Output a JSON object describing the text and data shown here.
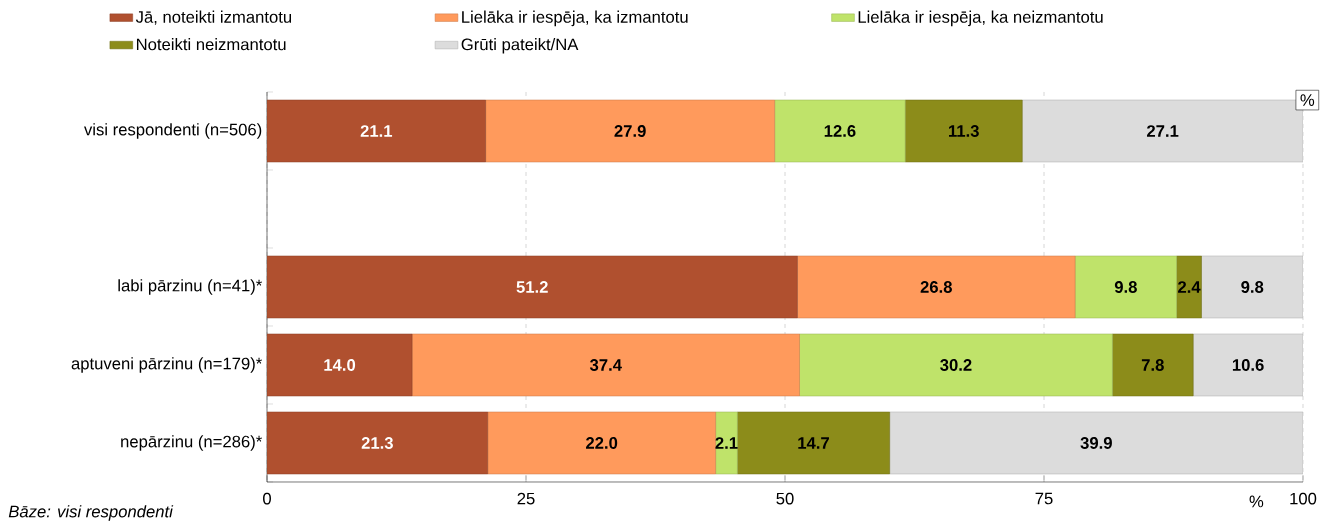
{
  "chart_data": {
    "type": "bar",
    "orientation": "horizontal",
    "stacked": true,
    "grid": "x",
    "legend": "top",
    "xlabel": "%",
    "categories": [
      "visi respondenti (n=506)",
      null,
      "labi pārzinu (n=41)*",
      "aptuveni pārzinu (n=179)*",
      "nepārzinu (n=286)*"
    ],
    "xlim": [
      0,
      100
    ],
    "xticks": [
      0,
      25,
      50,
      75,
      100
    ],
    "series": [
      {
        "name": "Jā, noteikti izmantotu",
        "color": "#b0502f",
        "values": [
          21.1,
          null,
          51.2,
          14.0,
          21.3
        ],
        "value_labels": [
          "21.1",
          null,
          "51.2",
          "14.0",
          "21.3"
        ]
      },
      {
        "name": "Lielāka ir iespēja, ka izmantotu",
        "color": "#ff9a5c",
        "values": [
          27.9,
          null,
          26.8,
          37.4,
          22.0
        ],
        "value_labels": [
          "27.9",
          null,
          "26.8",
          "37.4",
          "22.0"
        ]
      },
      {
        "name": "Lielāka ir iespēja, ka neizmantotu",
        "color": "#bfe36a",
        "values": [
          12.6,
          null,
          9.8,
          30.2,
          2.1
        ],
        "value_labels": [
          "12.6",
          null,
          "9.8",
          "30.2",
          "2.1"
        ]
      },
      {
        "name": "Noteikti neizmantotu",
        "color": "#8c8c1a",
        "values": [
          11.3,
          null,
          2.4,
          7.8,
          14.7
        ],
        "value_labels": [
          "11.3",
          null,
          "2.4",
          "7.8",
          "14.7"
        ]
      },
      {
        "name": "Grūti pateikt/NA",
        "color": "#dcdcdc",
        "values": [
          27.1,
          null,
          9.8,
          10.6,
          39.9
        ],
        "value_labels": [
          "27.1",
          null,
          "9.8",
          "10.6",
          "39.9"
        ]
      }
    ],
    "annotations": [
      "%",
      "*Bāze: visi respondenti*"
    ]
  }
}
